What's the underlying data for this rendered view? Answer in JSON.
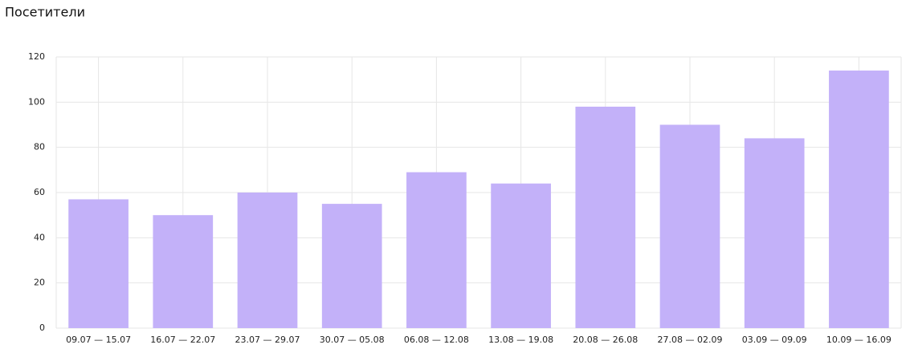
{
  "chart_data": {
    "type": "bar",
    "title": "Посетители",
    "categories": [
      "09.07 — 15.07",
      "16.07 — 22.07",
      "23.07 — 29.07",
      "30.07 — 05.08",
      "06.08 — 12.08",
      "13.08 — 19.08",
      "20.08 — 26.08",
      "27.08 — 02.09",
      "03.09 — 09.09",
      "10.09 — 16.09"
    ],
    "values": [
      57,
      50,
      60,
      55,
      69,
      64,
      98,
      90,
      84,
      114
    ],
    "color": "#c3b1f9",
    "ylim": [
      0,
      120
    ],
    "yticks": [
      0,
      20,
      40,
      60,
      80,
      100,
      120
    ],
    "grid": true
  }
}
